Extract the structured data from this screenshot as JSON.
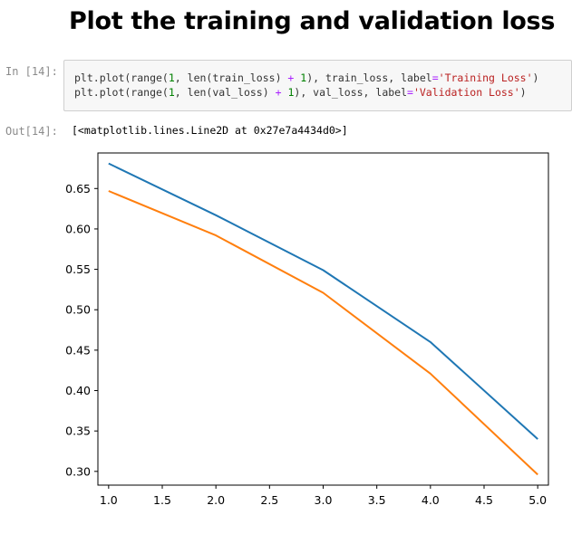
{
  "heading": "Plot the training and validation loss",
  "cell_in": {
    "prompt": "In [14]:",
    "line1": {
      "p1": "plt.plot(range(",
      "n1": "1",
      "p2": ", len(train_loss) ",
      "op": "+",
      "p3": " ",
      "n2": "1",
      "p4": "), train_loss, label",
      "eq": "=",
      "str": "'Training Loss'",
      "p5": ")"
    },
    "line2": {
      "p1": "plt.plot(range(",
      "n1": "1",
      "p2": ", len(val_loss) ",
      "op": "+",
      "p3": " ",
      "n2": "1",
      "p4": "), val_loss, label",
      "eq": "=",
      "str": "'Validation Loss'",
      "p5": ")"
    }
  },
  "cell_out": {
    "prompt": "Out[14]:",
    "text": "[<matplotlib.lines.Line2D at 0x27e7a4434d0>]"
  },
  "chart_data": {
    "type": "line",
    "x": [
      1,
      2,
      3,
      4,
      5
    ],
    "series": [
      {
        "values": [
          0.681,
          0.617,
          0.549,
          0.46,
          0.34
        ],
        "color": "#1f77b4"
      },
      {
        "values": [
          0.647,
          0.592,
          0.521,
          0.421,
          0.296
        ],
        "color": "#ff7f0e"
      }
    ],
    "xlim": [
      0.9,
      5.1
    ],
    "ylim": [
      0.283,
      0.694
    ],
    "xticks": [
      1.0,
      1.5,
      2.0,
      2.5,
      3.0,
      3.5,
      4.0,
      4.5,
      5.0
    ],
    "xtick_labels": [
      "1.0",
      "1.5",
      "2.0",
      "2.5",
      "3.0",
      "3.5",
      "4.0",
      "4.5",
      "5.0"
    ],
    "yticks": [
      0.3,
      0.35,
      0.4,
      0.45,
      0.5,
      0.55,
      0.6,
      0.65
    ],
    "ytick_labels": [
      "0.30",
      "0.35",
      "0.40",
      "0.45",
      "0.50",
      "0.55",
      "0.60",
      "0.65"
    ],
    "grid": false,
    "title": "",
    "xlabel": "",
    "ylabel": ""
  }
}
